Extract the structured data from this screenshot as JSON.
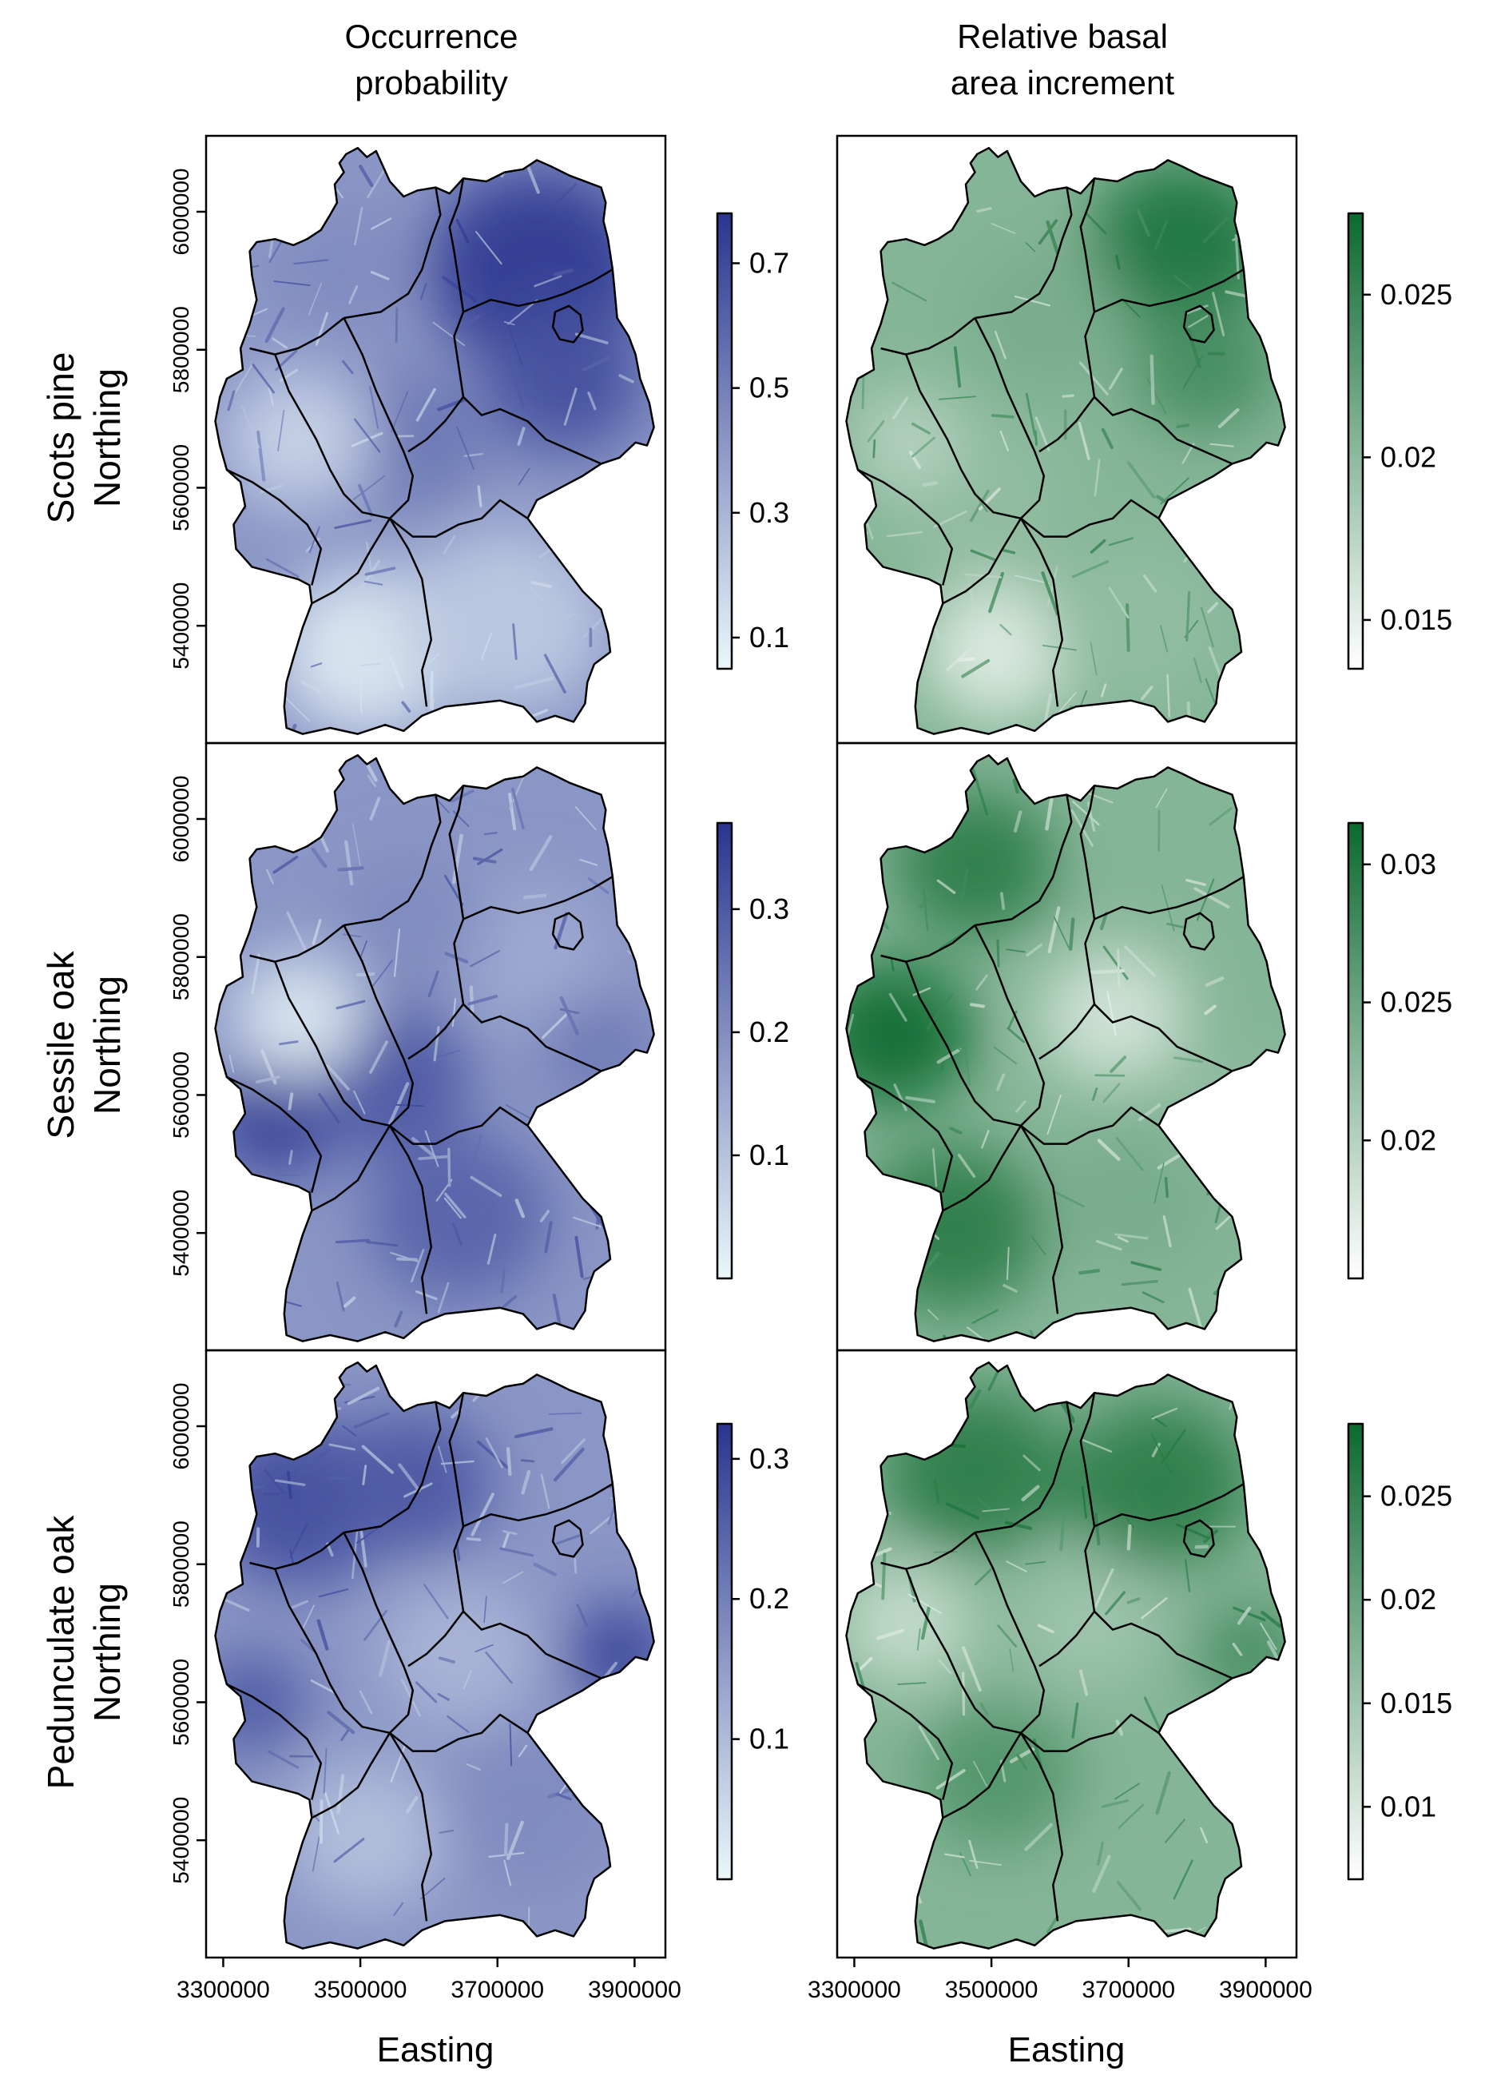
{
  "columns": [
    {
      "title_lines": [
        "Occurrence",
        "probability"
      ],
      "palette": "blue",
      "colors": [
        "#eaf7fa",
        "#2a3590"
      ]
    },
    {
      "title_lines": [
        "Relative basal",
        "area increment"
      ],
      "palette": "green",
      "colors": [
        "#ffffff",
        "#0b6a2f"
      ]
    }
  ],
  "rows": [
    {
      "species": "Scots pine",
      "ylabel": "Northing",
      "colorbars": [
        {
          "range": [
            0.05,
            0.78
          ],
          "ticks": [
            "0.1",
            "0.3",
            "0.5",
            "0.7"
          ],
          "tick_values": [
            0.1,
            0.3,
            0.5,
            0.7
          ]
        },
        {
          "range": [
            0.0135,
            0.0275
          ],
          "ticks": [
            "0.015",
            "0.02",
            "0.025"
          ],
          "tick_values": [
            0.015,
            0.02,
            0.025
          ]
        }
      ]
    },
    {
      "species": "Sessile oak",
      "ylabel": "Northing",
      "colorbars": [
        {
          "range": [
            0.0,
            0.37
          ],
          "ticks": [
            "0.1",
            "0.2",
            "0.3"
          ],
          "tick_values": [
            0.1,
            0.2,
            0.3
          ]
        },
        {
          "range": [
            0.015,
            0.0315
          ],
          "ticks": [
            "0.02",
            "0.025",
            "0.03"
          ],
          "tick_values": [
            0.02,
            0.025,
            0.03
          ]
        }
      ]
    },
    {
      "species": "Pedunculate oak",
      "ylabel": "Northing",
      "colorbars": [
        {
          "range": [
            0.0,
            0.325
          ],
          "ticks": [
            "0.1",
            "0.2",
            "0.3"
          ],
          "tick_values": [
            0.1,
            0.2,
            0.3
          ]
        },
        {
          "range": [
            0.0065,
            0.0285
          ],
          "ticks": [
            "0.01",
            "0.015",
            "0.02",
            "0.025"
          ],
          "tick_values": [
            0.01,
            0.015,
            0.02,
            0.025
          ]
        }
      ]
    }
  ],
  "y_axis": {
    "ticks": [
      "5400000",
      "5600000",
      "5800000",
      "6000000"
    ],
    "values": [
      5400000,
      5600000,
      5800000,
      6000000
    ]
  },
  "x_axis": {
    "title": "Easting",
    "ticks": [
      "3300000",
      "3500000",
      "3700000",
      "3900000"
    ],
    "values": [
      3300000,
      3500000,
      3700000,
      3900000
    ]
  }
}
